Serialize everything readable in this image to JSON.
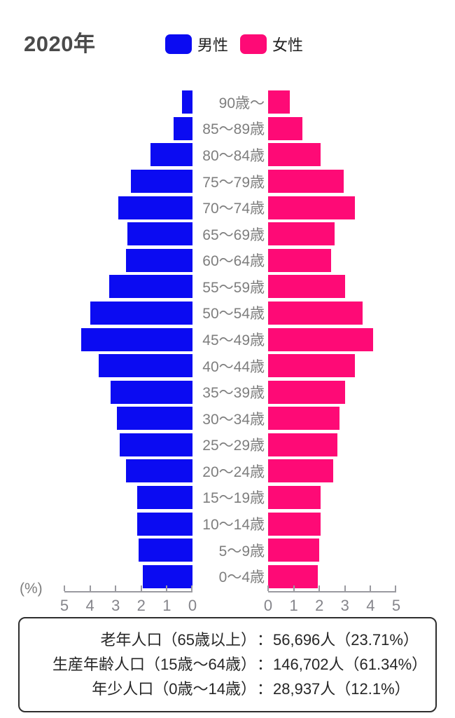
{
  "title": "2020年",
  "legend": {
    "male_label": "男性",
    "female_label": "女性"
  },
  "colors": {
    "male": "#0b0bf2",
    "female": "#fe0a76",
    "axis": "#9a9aa0",
    "age_label": "#7e7e7e"
  },
  "axis": {
    "unit_label": "(%)",
    "max": 5,
    "left_ticks": [
      "5",
      "4",
      "3",
      "2",
      "1",
      "0"
    ],
    "right_ticks": [
      "0",
      "1",
      "2",
      "3",
      "4",
      "5"
    ]
  },
  "chart_data": {
    "type": "bar",
    "subtype": "population-pyramid",
    "title": "2020年",
    "xlabel": "(%)",
    "xlim": [
      0,
      5
    ],
    "legend_position": "top",
    "categories": [
      "90歳〜",
      "85〜89歳",
      "80〜84歳",
      "75〜79歳",
      "70〜74歳",
      "65〜69歳",
      "60〜64歳",
      "55〜59歳",
      "50〜54歳",
      "45〜49歳",
      "40〜44歳",
      "35〜39歳",
      "30〜34歳",
      "25〜29歳",
      "20〜24歳",
      "15〜19歳",
      "10〜14歳",
      "5〜9歳",
      "0〜4歳"
    ],
    "series": [
      {
        "name": "男性",
        "side": "left",
        "values": [
          0.4,
          0.75,
          1.65,
          2.4,
          2.9,
          2.55,
          2.6,
          3.25,
          4.0,
          4.35,
          3.65,
          3.2,
          2.95,
          2.85,
          2.6,
          2.15,
          2.15,
          2.1,
          1.95
        ]
      },
      {
        "name": "女性",
        "side": "right",
        "values": [
          0.85,
          1.35,
          2.05,
          2.95,
          3.4,
          2.6,
          2.45,
          3.0,
          3.7,
          4.1,
          3.4,
          3.0,
          2.8,
          2.7,
          2.55,
          2.05,
          2.05,
          2.0,
          1.95
        ]
      }
    ]
  },
  "summary": {
    "rows": [
      {
        "label": "老年人口（65歳以上）",
        "colon": "：",
        "value": "56,696人（23.71%）"
      },
      {
        "label": "生産年齢人口（15歳〜64歳）",
        "colon": "：",
        "value": "146,702人（61.34%）"
      },
      {
        "label": "年少人口（0歳〜14歳）",
        "colon": "：",
        "value": "28,937人（12.1%）"
      }
    ]
  }
}
